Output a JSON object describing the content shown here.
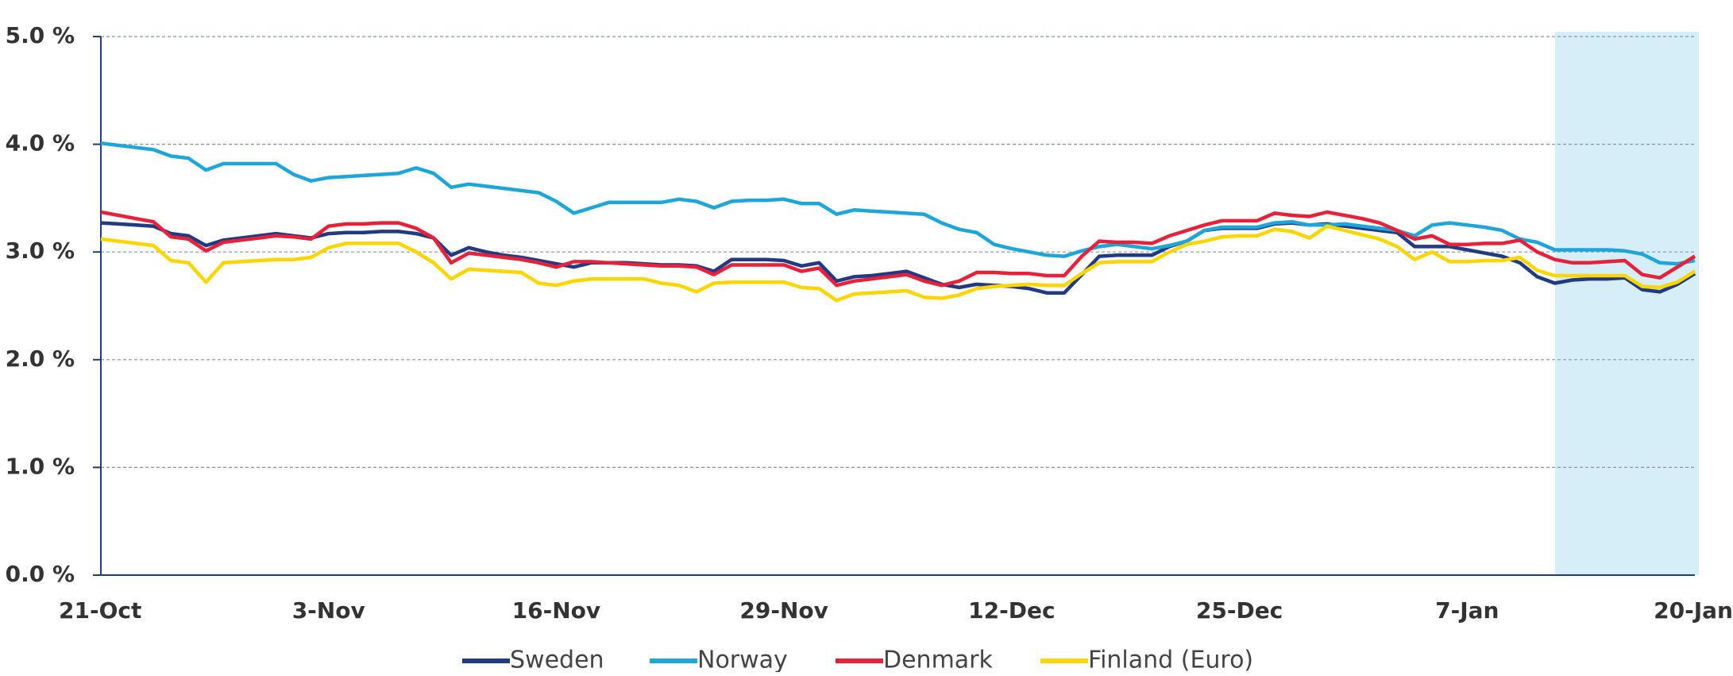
{
  "chart_data": {
    "type": "line",
    "categories": [
      "21-Oct",
      null,
      null,
      null,
      null,
      null,
      null,
      null,
      null,
      null,
      null,
      null,
      null,
      "3-Nov",
      null,
      null,
      null,
      null,
      null,
      null,
      null,
      null,
      null,
      null,
      null,
      null,
      "16-Nov",
      null,
      null,
      null,
      null,
      null,
      null,
      null,
      null,
      null,
      null,
      null,
      null,
      "29-Nov",
      null,
      null,
      null,
      null,
      null,
      null,
      null,
      null,
      null,
      null,
      null,
      null,
      "12-Dec",
      null,
      null,
      null,
      null,
      null,
      null,
      null,
      null,
      null,
      null,
      null,
      null,
      "25-Dec",
      null,
      null,
      null,
      null,
      null,
      null,
      null,
      null,
      null,
      null,
      null,
      null,
      "7-Jan",
      null,
      null,
      null,
      null,
      null,
      null,
      null,
      null,
      null,
      null,
      null,
      null,
      "20-Jan"
    ],
    "series": [
      {
        "name": "Sweden",
        "color": "#223a84",
        "values": [
          3.27,
          3.26,
          3.25,
          3.24,
          3.17,
          3.15,
          3.06,
          3.11,
          3.13,
          3.15,
          3.17,
          3.15,
          3.13,
          3.17,
          3.18,
          3.18,
          3.19,
          3.19,
          3.17,
          3.13,
          2.97,
          3.04,
          3.0,
          2.97,
          2.95,
          2.92,
          2.89,
          2.86,
          2.9,
          2.9,
          2.9,
          2.89,
          2.88,
          2.88,
          2.87,
          2.82,
          2.93,
          2.93,
          2.93,
          2.92,
          2.87,
          2.9,
          2.73,
          2.77,
          2.78,
          2.8,
          2.82,
          2.76,
          2.7,
          2.67,
          2.7,
          2.69,
          2.68,
          2.66,
          2.62,
          2.62,
          2.79,
          2.96,
          2.97,
          2.97,
          2.97,
          3.05,
          3.1,
          3.2,
          3.22,
          3.22,
          3.22,
          3.26,
          3.27,
          3.25,
          3.26,
          3.24,
          3.22,
          3.2,
          3.18,
          3.05,
          3.05,
          3.05,
          3.02,
          2.99,
          2.96,
          2.9,
          2.77,
          2.71,
          2.74,
          2.75,
          2.75,
          2.76,
          2.65,
          2.63,
          2.7,
          2.8
        ]
      },
      {
        "name": "Norway",
        "color": "#1ea5d9",
        "values": [
          4.01,
          3.99,
          3.97,
          3.95,
          3.89,
          3.87,
          3.76,
          3.82,
          3.82,
          3.82,
          3.82,
          3.72,
          3.66,
          3.69,
          3.7,
          3.71,
          3.72,
          3.73,
          3.78,
          3.73,
          3.6,
          3.63,
          3.61,
          3.59,
          3.57,
          3.55,
          3.47,
          3.36,
          3.41,
          3.46,
          3.46,
          3.46,
          3.46,
          3.49,
          3.47,
          3.41,
          3.47,
          3.48,
          3.48,
          3.49,
          3.45,
          3.45,
          3.35,
          3.39,
          3.38,
          3.37,
          3.36,
          3.35,
          3.27,
          3.21,
          3.18,
          3.07,
          3.03,
          3.0,
          2.97,
          2.96,
          3.01,
          3.05,
          3.07,
          3.05,
          3.03,
          3.06,
          3.1,
          3.2,
          3.23,
          3.23,
          3.23,
          3.27,
          3.28,
          3.25,
          3.25,
          3.26,
          3.24,
          3.22,
          3.2,
          3.15,
          3.25,
          3.27,
          3.25,
          3.23,
          3.2,
          3.12,
          3.09,
          3.02,
          3.02,
          3.02,
          3.02,
          3.01,
          2.98,
          2.9,
          2.89,
          2.92
        ]
      },
      {
        "name": "Denmark",
        "color": "#e8213a",
        "values": [
          3.37,
          3.34,
          3.31,
          3.28,
          3.14,
          3.12,
          3.01,
          3.09,
          3.11,
          3.13,
          3.15,
          3.14,
          3.12,
          3.24,
          3.26,
          3.26,
          3.27,
          3.27,
          3.22,
          3.13,
          2.9,
          2.99,
          2.97,
          2.95,
          2.93,
          2.9,
          2.86,
          2.91,
          2.91,
          2.9,
          2.89,
          2.88,
          2.87,
          2.87,
          2.86,
          2.79,
          2.88,
          2.88,
          2.88,
          2.88,
          2.82,
          2.85,
          2.69,
          2.73,
          2.75,
          2.77,
          2.79,
          2.73,
          2.69,
          2.73,
          2.81,
          2.81,
          2.8,
          2.8,
          2.78,
          2.78,
          2.96,
          3.1,
          3.09,
          3.09,
          3.08,
          3.15,
          3.2,
          3.25,
          3.29,
          3.29,
          3.29,
          3.36,
          3.34,
          3.33,
          3.37,
          3.34,
          3.31,
          3.27,
          3.2,
          3.12,
          3.15,
          3.07,
          3.07,
          3.08,
          3.08,
          3.11,
          3.0,
          2.93,
          2.9,
          2.9,
          2.91,
          2.92,
          2.79,
          2.76,
          2.86,
          2.96
        ]
      },
      {
        "name": "Finland (Euro)",
        "color": "#fdd500",
        "values": [
          3.12,
          3.1,
          3.08,
          3.06,
          2.92,
          2.9,
          2.72,
          2.9,
          2.91,
          2.92,
          2.93,
          2.93,
          2.95,
          3.04,
          3.08,
          3.08,
          3.08,
          3.08,
          3.0,
          2.9,
          2.75,
          2.84,
          2.83,
          2.82,
          2.81,
          2.71,
          2.69,
          2.73,
          2.75,
          2.75,
          2.75,
          2.75,
          2.71,
          2.69,
          2.63,
          2.71,
          2.72,
          2.72,
          2.72,
          2.72,
          2.67,
          2.66,
          2.55,
          2.61,
          2.62,
          2.63,
          2.64,
          2.58,
          2.57,
          2.6,
          2.66,
          2.68,
          2.69,
          2.7,
          2.69,
          2.69,
          2.8,
          2.9,
          2.91,
          2.91,
          2.91,
          3.0,
          3.07,
          3.1,
          3.14,
          3.15,
          3.15,
          3.21,
          3.19,
          3.13,
          3.24,
          3.2,
          3.16,
          3.12,
          3.05,
          2.93,
          3.0,
          2.91,
          2.91,
          2.92,
          2.92,
          2.95,
          2.83,
          2.78,
          2.78,
          2.78,
          2.78,
          2.78,
          2.68,
          2.67,
          2.72,
          2.82
        ]
      }
    ],
    "ylim": [
      0,
      5
    ],
    "yticks": [
      {
        "value": 0,
        "label": "0.0 %"
      },
      {
        "value": 1,
        "label": "1.0 %"
      },
      {
        "value": 2,
        "label": "2.0 %"
      },
      {
        "value": 3,
        "label": "3.0 %"
      },
      {
        "value": 4,
        "label": "4.0 %"
      },
      {
        "value": 5,
        "label": "5.0 %"
      }
    ],
    "grid": true
  }
}
